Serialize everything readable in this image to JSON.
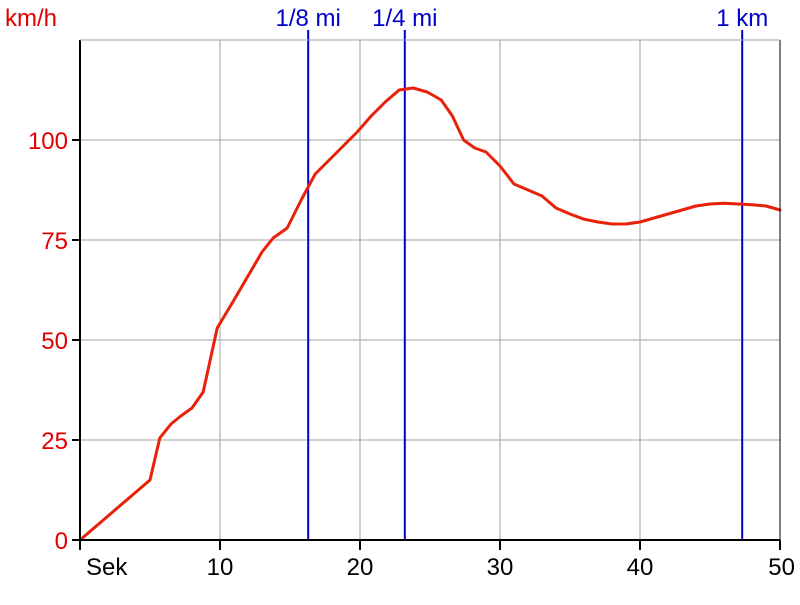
{
  "chart_data": {
    "type": "line",
    "ylabel": "km/h",
    "xlabel": "Sek",
    "xlim": [
      0,
      50
    ],
    "ylim": [
      0,
      125
    ],
    "xticks": [
      10,
      20,
      30,
      40,
      50
    ],
    "yticks": [
      0,
      25,
      50,
      75,
      100
    ],
    "grid": true,
    "colors": {
      "series": "#e8220a",
      "axis_text": "#e00000",
      "markers": "#0000c8",
      "grid": "#a0a0a0",
      "axes": "#000000"
    },
    "series": [
      {
        "values_x": [
          0,
          1,
          2,
          3,
          4,
          5,
          5.7,
          6.5,
          7.2,
          8,
          8.8,
          9.8,
          11,
          12,
          13,
          13.8,
          14.8,
          15.8,
          16.8,
          17.8,
          18.8,
          19.8,
          20.8,
          21.8,
          22.8,
          23.8,
          24.8,
          25.8,
          26.6,
          27.4,
          28.2,
          29,
          30,
          31,
          32,
          33,
          34,
          35,
          36,
          37,
          38,
          39,
          40,
          41,
          42,
          43,
          44,
          45,
          46,
          47,
          48,
          49,
          50
        ],
        "values_y": [
          0,
          3,
          6,
          9,
          12,
          15,
          25.5,
          29,
          31,
          33,
          37,
          53,
          60,
          66,
          72,
          75.5,
          78,
          85,
          91.5,
          95,
          98.5,
          102,
          106,
          109.5,
          112.5,
          113,
          112,
          110,
          106,
          100,
          98,
          97,
          93.5,
          89,
          87.5,
          86,
          83,
          81.5,
          80.2,
          79.5,
          79,
          79,
          79.5,
          80.5,
          81.5,
          82.5,
          83.5,
          84,
          84.2,
          84,
          83.8,
          83.5,
          82.5
        ]
      }
    ],
    "markers": [
      {
        "label": "1/8 mi",
        "x": 16.3
      },
      {
        "label": "1/4 mi",
        "x": 23.2
      },
      {
        "label": "1 km",
        "x": 47.3
      }
    ]
  }
}
